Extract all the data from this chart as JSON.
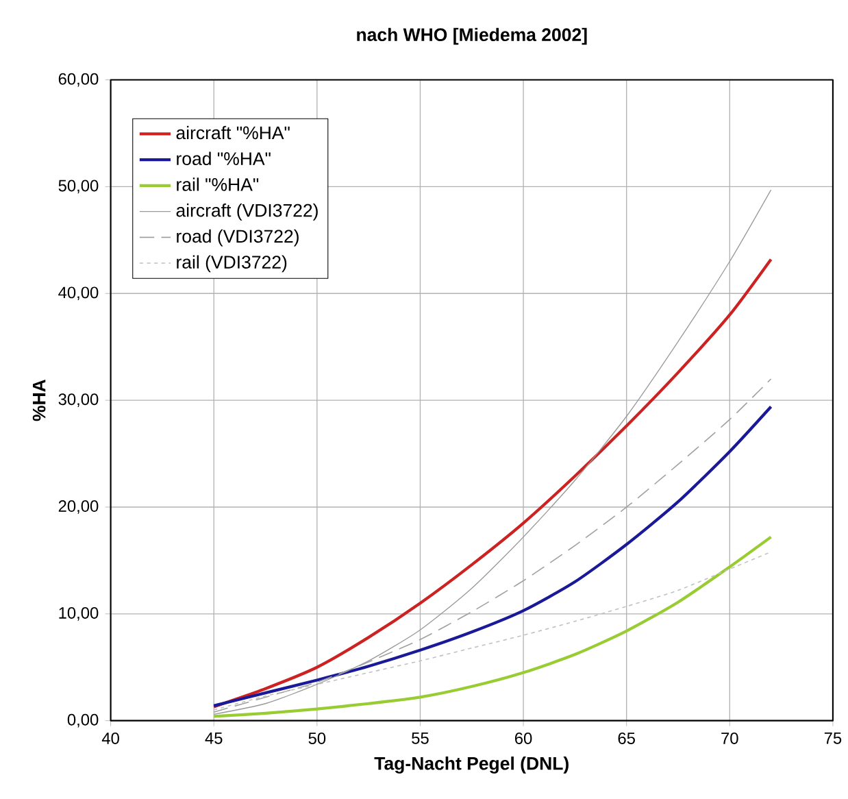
{
  "chart_data": {
    "type": "line",
    "title": "nach WHO [Miedema 2002]",
    "xlabel": "Tag-Nacht Pegel (DNL)",
    "ylabel": "%HA",
    "x": [
      45,
      47.5,
      50,
      52.5,
      55,
      57.5,
      60,
      62.5,
      65,
      67.5,
      70,
      72
    ],
    "series": [
      {
        "name": "aircraft \"%HA\"",
        "color": "#cc2222",
        "line_style": "solid",
        "values": [
          1.3,
          3.0,
          5.0,
          7.8,
          11.0,
          14.6,
          18.5,
          22.9,
          27.6,
          32.6,
          38.0,
          43.2
        ]
      },
      {
        "name": "road \"%HA\"",
        "color": "#1a1a99",
        "line_style": "solid",
        "values": [
          1.4,
          2.6,
          3.8,
          5.1,
          6.6,
          8.3,
          10.3,
          13.0,
          16.5,
          20.5,
          25.2,
          29.4
        ]
      },
      {
        "name": "rail \"%HA\"",
        "color": "#99cc33",
        "line_style": "solid",
        "values": [
          0.4,
          0.7,
          1.1,
          1.6,
          2.2,
          3.2,
          4.5,
          6.2,
          8.4,
          11.1,
          14.4,
          17.2
        ]
      },
      {
        "name": "aircraft (VDI3722)",
        "color": "#999999",
        "line_style": "solid",
        "values": [
          0.6,
          1.6,
          3.4,
          5.6,
          8.5,
          12.4,
          17.2,
          22.5,
          28.5,
          35.5,
          43.0,
          49.7
        ]
      },
      {
        "name": "road (VDI3722)",
        "color": "#a0a0a0",
        "line_style": "dashed",
        "values": [
          0.8,
          2.2,
          3.6,
          5.5,
          7.6,
          10.2,
          13.1,
          16.4,
          20.0,
          24.0,
          28.2,
          32.0
        ]
      },
      {
        "name": "rail (VDI3722)",
        "color": "#c0c0c0",
        "line_style": "dotted",
        "values": [
          1.0,
          2.3,
          3.4,
          4.5,
          5.6,
          6.8,
          8.0,
          9.3,
          10.7,
          12.2,
          14.2,
          15.8
        ]
      }
    ],
    "xlim": [
      40,
      75
    ],
    "xticks": [
      40,
      45,
      50,
      55,
      60,
      65,
      70,
      75
    ],
    "ylim": [
      0,
      60
    ],
    "yticks": [
      {
        "value": 0,
        "label": "0,00"
      },
      {
        "value": 10,
        "label": "10,00"
      },
      {
        "value": 20,
        "label": "20,00"
      },
      {
        "value": 30,
        "label": "30,00"
      },
      {
        "value": 40,
        "label": "40,00"
      },
      {
        "value": 50,
        "label": "50,00"
      },
      {
        "value": 60,
        "label": "60,00"
      }
    ],
    "grid": true,
    "legend": "top left",
    "marker": "none"
  }
}
